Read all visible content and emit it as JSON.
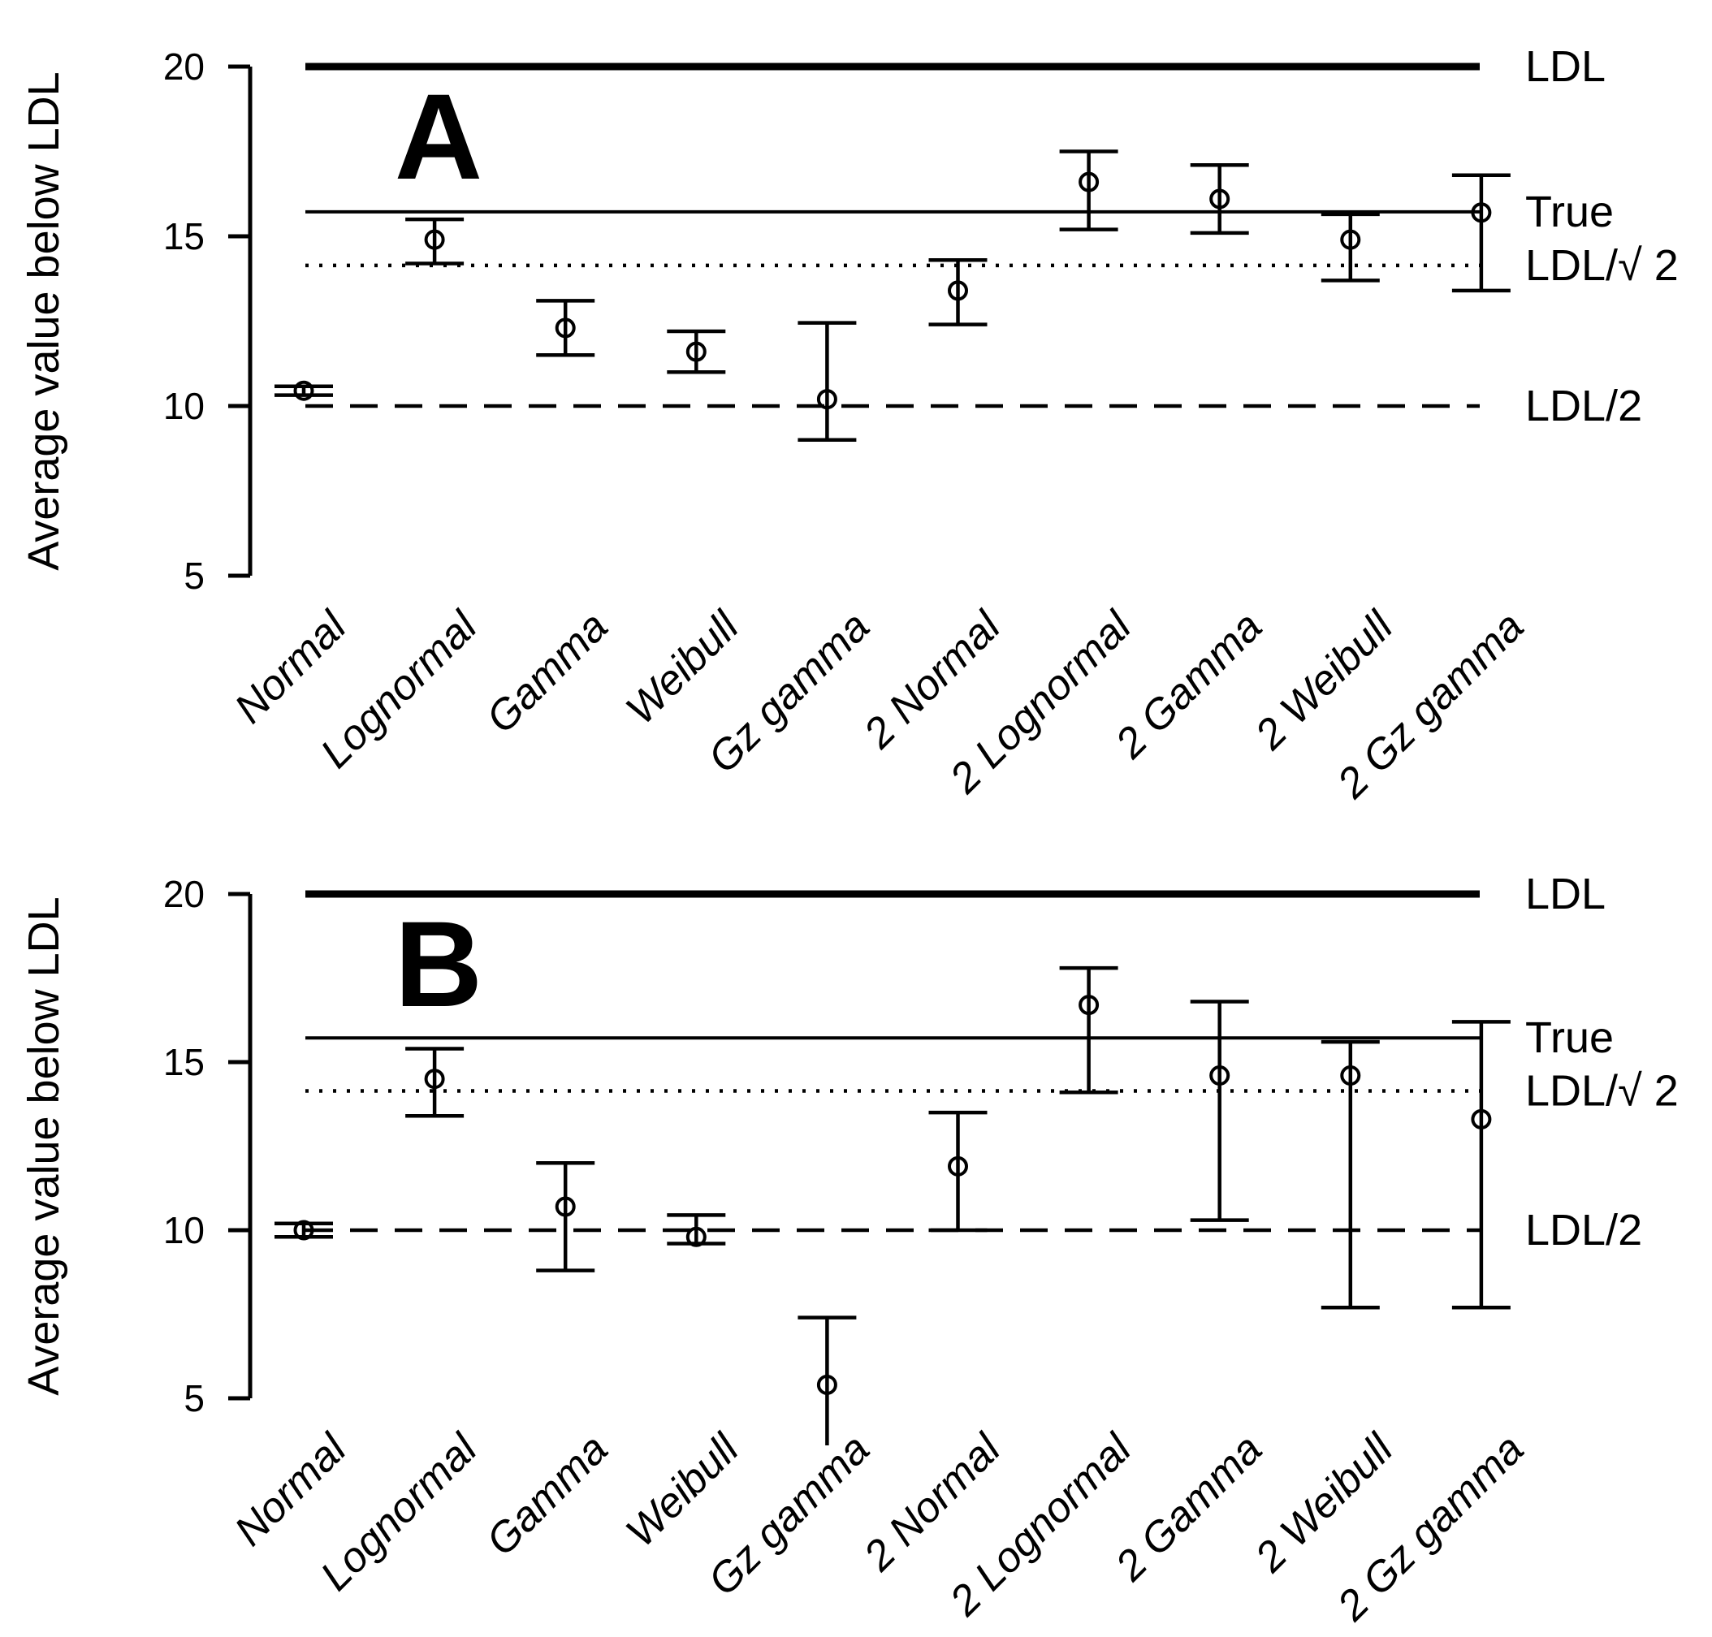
{
  "figure": {
    "background": "#ffffff",
    "foreground": "#000000"
  },
  "chart_data": [
    {
      "type": "scatter",
      "panel": "A",
      "ylabel": "Average value below LDL",
      "ylim": [
        5,
        20
      ],
      "yticks": [
        20,
        15,
        10,
        5
      ],
      "grid": false,
      "categories": [
        "Normal",
        "Lognormal",
        "Gamma",
        "Weibull",
        "Gz gamma",
        "2 Normal",
        "2 Lognormal",
        "2 Gamma",
        "2 Weibull",
        "2 Gz gamma"
      ],
      "series": [
        {
          "name": "estimate-with-95ci",
          "marker": "open-circle",
          "values": [
            10.45,
            14.9,
            12.3,
            11.6,
            10.2,
            13.4,
            16.6,
            16.1,
            14.9,
            15.7
          ],
          "ci_low": [
            10.32,
            14.2,
            11.5,
            11.0,
            9.0,
            12.4,
            15.2,
            15.1,
            13.7,
            13.4
          ],
          "ci_high": [
            10.58,
            15.5,
            13.1,
            12.2,
            12.45,
            14.3,
            17.5,
            17.1,
            15.65,
            16.8
          ],
          "lower_cap": [
            true,
            true,
            true,
            true,
            true,
            true,
            true,
            true,
            true,
            true
          ]
        }
      ],
      "reference_lines": [
        {
          "label": "LDL",
          "value": 20,
          "style": "solid-thick"
        },
        {
          "label": "True",
          "value": 15.72,
          "style": "solid"
        },
        {
          "label": "LDL/√ 2",
          "value": 14.142,
          "style": "dotted"
        },
        {
          "label": "LDL/2",
          "value": 10,
          "style": "dashed"
        }
      ],
      "legend_position": "right-margin"
    },
    {
      "type": "scatter",
      "panel": "B",
      "ylabel": "Average value below LDL",
      "ylim": [
        5,
        20
      ],
      "yticks": [
        20,
        15,
        10,
        5
      ],
      "grid": false,
      "categories": [
        "Normal",
        "Lognormal",
        "Gamma",
        "Weibull",
        "Gz gamma",
        "2 Normal",
        "2 Lognormal",
        "2 Gamma",
        "2 Weibull",
        "2 Gz gamma"
      ],
      "series": [
        {
          "name": "estimate-with-95ci",
          "marker": "open-circle",
          "values": [
            10.0,
            14.5,
            10.7,
            9.8,
            5.4,
            11.9,
            16.7,
            14.6,
            14.6,
            13.3
          ],
          "ci_low": [
            9.8,
            13.4,
            8.8,
            9.6,
            3.6,
            10.0,
            14.1,
            10.3,
            7.7,
            7.7
          ],
          "ci_high": [
            10.2,
            15.4,
            12.0,
            10.45,
            7.4,
            13.5,
            17.8,
            16.8,
            15.6,
            16.2
          ],
          "lower_cap": [
            true,
            true,
            true,
            true,
            false,
            true,
            true,
            true,
            true,
            true
          ]
        }
      ],
      "reference_lines": [
        {
          "label": "LDL",
          "value": 20,
          "style": "solid-thick"
        },
        {
          "label": "True",
          "value": 15.72,
          "style": "solid"
        },
        {
          "label": "LDL/√ 2",
          "value": 14.142,
          "style": "dotted"
        },
        {
          "label": "LDL/2",
          "value": 10,
          "style": "dashed"
        }
      ],
      "legend_position": "right-margin"
    }
  ]
}
